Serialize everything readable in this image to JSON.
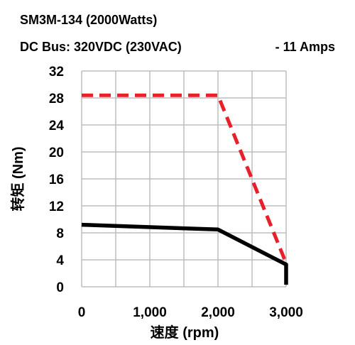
{
  "header": {
    "line1": "SM3M-134 (2000Watts)",
    "line2": "DC Bus: 320VDC (230VAC)",
    "line3": "-   11 Amps"
  },
  "chart_data": {
    "type": "line",
    "xlabel": "速度 (rpm)",
    "ylabel": "转矩 (Nm)",
    "xlim": [
      0,
      3000
    ],
    "ylim": [
      0,
      32
    ],
    "x_ticks": [
      "0",
      "1,000",
      "2,000",
      "3,000"
    ],
    "y_ticks": [
      "0",
      "4",
      "8",
      "12",
      "16",
      "20",
      "24",
      "28",
      "32"
    ],
    "grid": true,
    "legend": "none",
    "series": [
      {
        "style": "dashed",
        "color": "#e8202a",
        "x": [
          0,
          2000,
          3000
        ],
        "y": [
          28.4,
          28.4,
          3.5
        ]
      },
      {
        "style": "solid",
        "color": "#000000",
        "x": [
          0,
          2000,
          3000,
          3000
        ],
        "y": [
          9.2,
          8.5,
          3.3,
          0.3
        ]
      }
    ]
  }
}
